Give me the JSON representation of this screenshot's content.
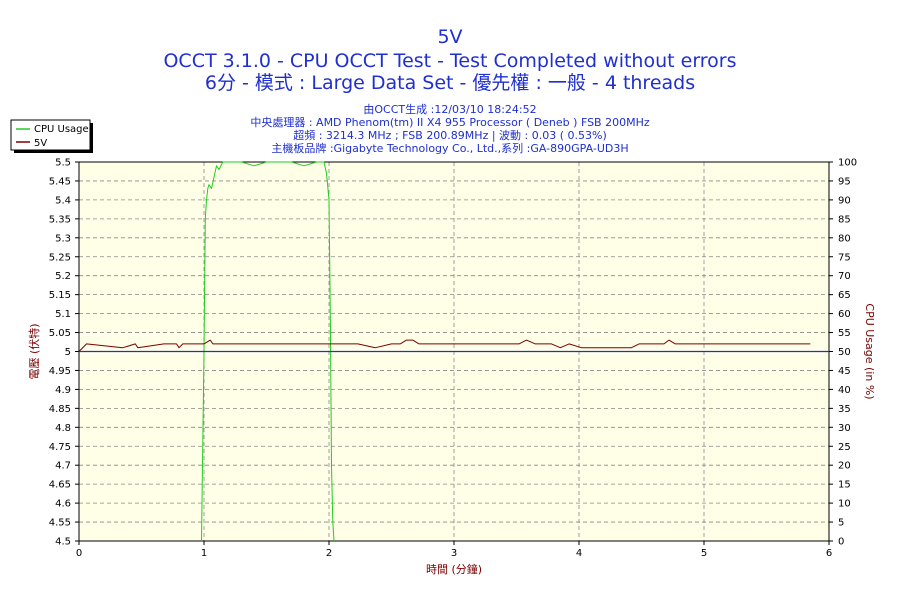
{
  "titles": {
    "line1": "5V",
    "line2": "OCCT 3.1.0 - CPU OCCT Test - Test Completed without errors",
    "line3": "6分 - 模式 : Large Data Set - 優先權 : 一般 - 4 threads"
  },
  "info": {
    "line1": "由OCCT生成 :12/03/10 18:24:52",
    "line2": "中央處理器 : AMD Phenom(tm) II X4 955 Processor ( Deneb ) FSB 200MHz",
    "line3": "超頻 : 3214.3 MHz ; FSB 200.89MHz | 波動 : 0.03 ( 0.53%)",
    "line4": "主機板品牌 :Gigabyte Technology Co., Ltd.,系列 :GA-890GPA-UD3H"
  },
  "colors": {
    "title": "#1f2fd0",
    "cpu_usage": "#22cc22",
    "voltage": "#7a0000",
    "baseline": "#1f2fd0",
    "axis_label": "#7a0000",
    "plot_bg": "#ffffe8"
  },
  "chart_data": {
    "type": "line",
    "title": "5V",
    "xlabel": "時間 (分鐘)",
    "ylabel_left": "電壓 (伏特)",
    "ylabel_right": "CPU Usage (in %)",
    "xlim": [
      0,
      6
    ],
    "ylim_left": [
      4.5,
      5.5
    ],
    "ylim_right": [
      0,
      100
    ],
    "x_ticks": [
      "0",
      "1",
      "2",
      "3",
      "4",
      "5",
      "6"
    ],
    "y_left_ticks": [
      "4.5",
      "4.55",
      "4.6",
      "4.65",
      "4.7",
      "4.75",
      "4.8",
      "4.85",
      "4.9",
      "4.95",
      "5",
      "5.05",
      "5.1",
      "5.15",
      "5.2",
      "5.25",
      "5.3",
      "5.35",
      "5.4",
      "5.45",
      "5.5"
    ],
    "y_right_ticks": [
      "0",
      "5",
      "10",
      "15",
      "20",
      "25",
      "30",
      "35",
      "40",
      "45",
      "50",
      "55",
      "60",
      "65",
      "70",
      "75",
      "80",
      "85",
      "90",
      "95",
      "100"
    ],
    "grid": true,
    "legend": "top-left",
    "series": [
      {
        "name": "CPU Usage",
        "axis": "right",
        "x": [
          0.98,
          1.0,
          1.01,
          1.02,
          1.03,
          1.04,
          1.06,
          1.08,
          1.1,
          1.12,
          1.15,
          1.2,
          1.3,
          1.4,
          1.5,
          1.6,
          1.7,
          1.8,
          1.9,
          1.96,
          1.98,
          2.0,
          2.01,
          2.02,
          2.03,
          2.04
        ],
        "values": [
          0,
          50,
          85,
          90,
          93,
          94,
          93,
          96,
          99,
          98,
          100,
          100,
          100,
          99,
          100,
          100,
          100,
          99,
          100,
          100,
          97,
          90,
          60,
          20,
          5,
          0
        ]
      },
      {
        "name": "5V",
        "axis": "left",
        "x": [
          0,
          0.06,
          0.35,
          0.45,
          0.47,
          0.68,
          0.78,
          0.8,
          0.83,
          1.0,
          1.05,
          1.07,
          1.58,
          1.88,
          2.07,
          2.13,
          2.18,
          2.23,
          2.37,
          2.5,
          2.57,
          2.62,
          2.67,
          2.72,
          2.77,
          2.82,
          2.88,
          2.95,
          3.02,
          3.08,
          3.18,
          3.32,
          3.37,
          3.45,
          3.52,
          3.58,
          3.65,
          3.72,
          3.78,
          3.85,
          3.92,
          4.02,
          4.22,
          4.42,
          4.48,
          4.55,
          4.62,
          4.68,
          4.72,
          4.77,
          4.95,
          5.22,
          5.35,
          5.55,
          5.72,
          5.77,
          5.85
        ],
        "values": [
          5.0,
          5.02,
          5.01,
          5.02,
          5.01,
          5.02,
          5.02,
          5.01,
          5.02,
          5.02,
          5.03,
          5.02,
          5.02,
          5.02,
          5.02,
          5.02,
          5.02,
          5.02,
          5.01,
          5.02,
          5.02,
          5.03,
          5.03,
          5.02,
          5.02,
          5.02,
          5.02,
          5.02,
          5.02,
          5.02,
          5.02,
          5.02,
          5.02,
          5.02,
          5.02,
          5.03,
          5.02,
          5.02,
          5.02,
          5.01,
          5.02,
          5.01,
          5.01,
          5.01,
          5.02,
          5.02,
          5.02,
          5.02,
          5.03,
          5.02,
          5.02,
          5.02,
          5.02,
          5.02,
          5.02,
          5.02,
          5.02
        ]
      },
      {
        "name": "",
        "axis": "left",
        "x": [
          0,
          6
        ],
        "values": [
          5.0,
          5.0
        ]
      }
    ]
  }
}
